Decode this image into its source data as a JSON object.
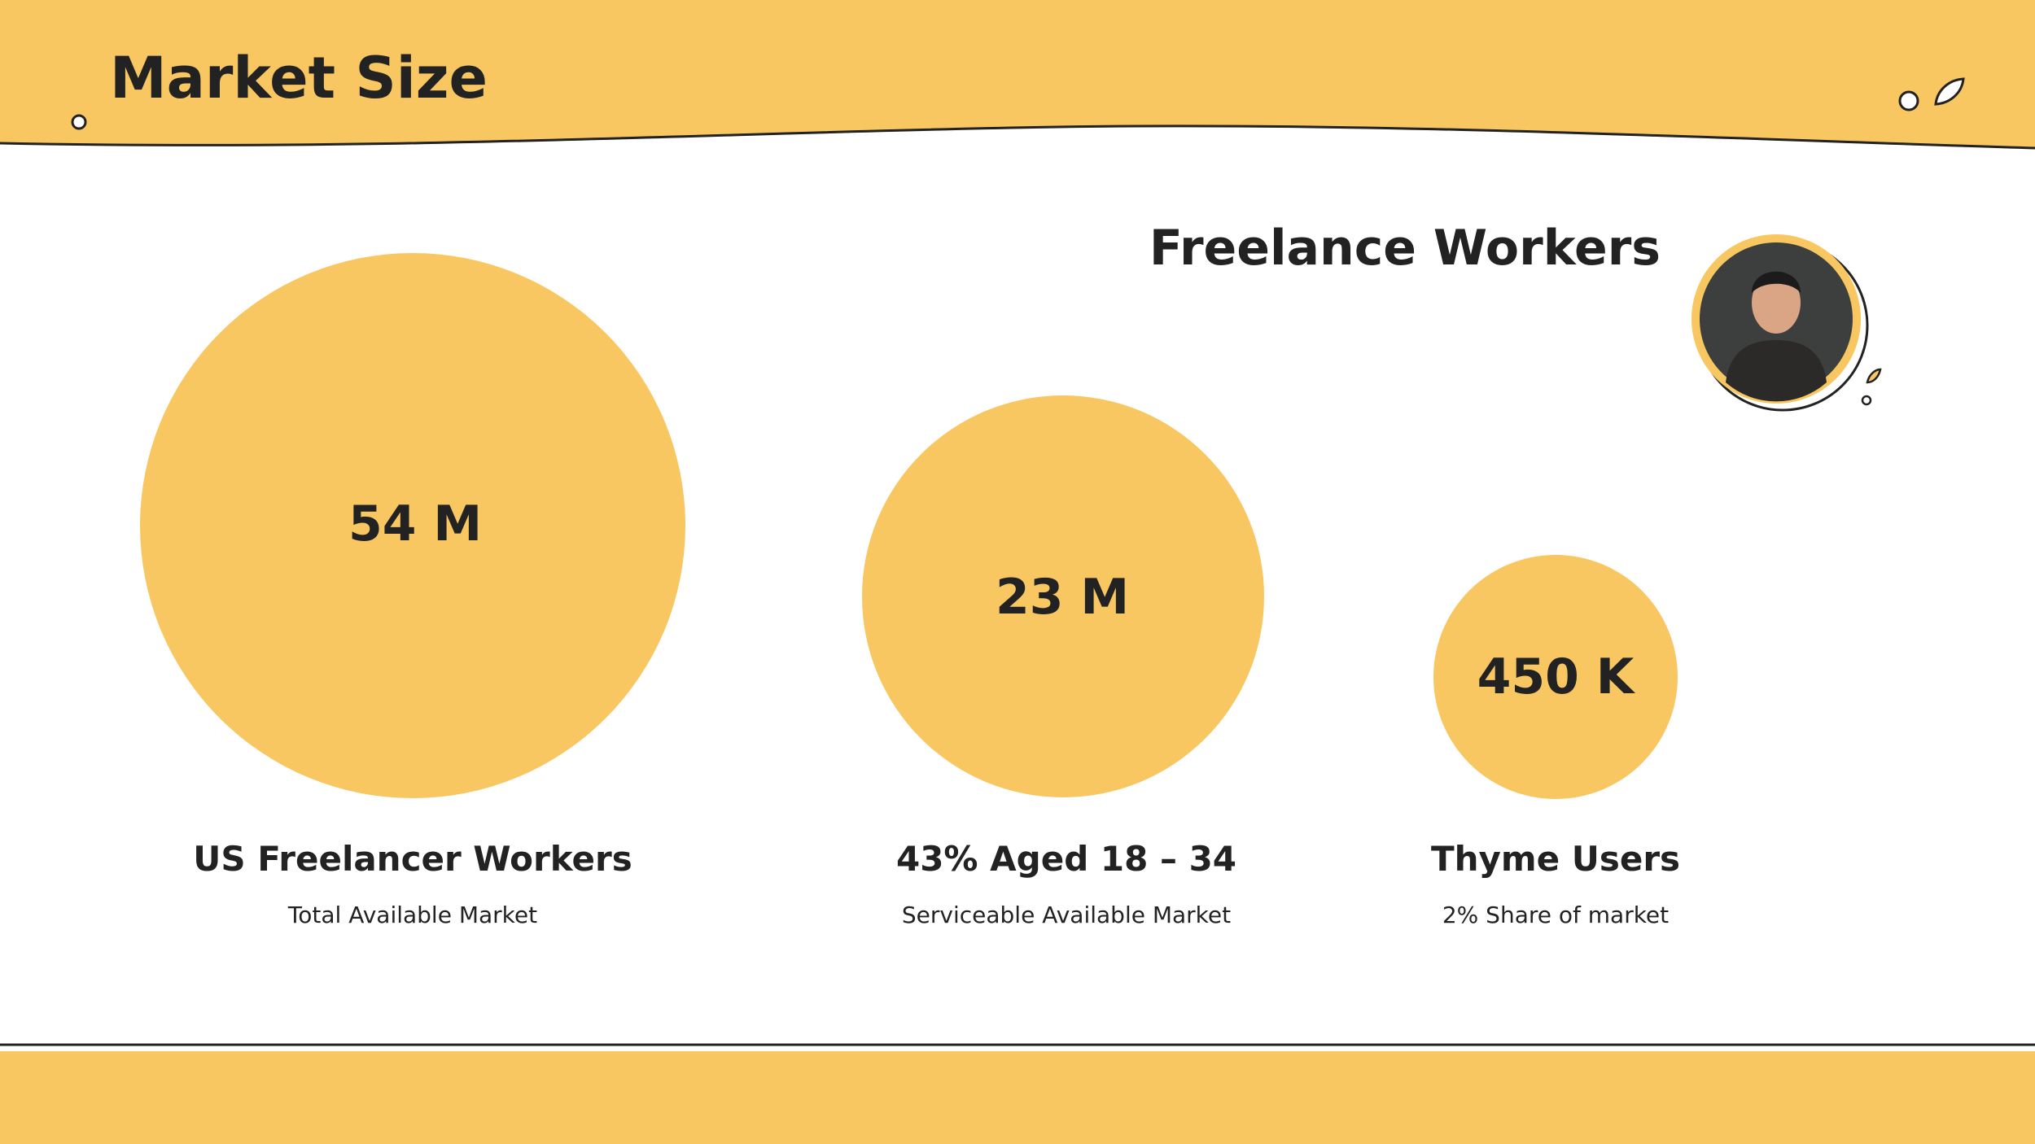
{
  "header": {
    "title": "Market Size"
  },
  "section": {
    "title": "Freelance Workers"
  },
  "items": [
    {
      "value": "54 M",
      "label": "US Freelancer Workers",
      "sublabel": "Total Available Market"
    },
    {
      "value": "23 M",
      "label": "43% Aged 18 – 34",
      "sublabel": "Serviceable Available Market"
    },
    {
      "value": "450 K",
      "label": "Thyme Users",
      "sublabel": "2% Share of market"
    }
  ]
}
